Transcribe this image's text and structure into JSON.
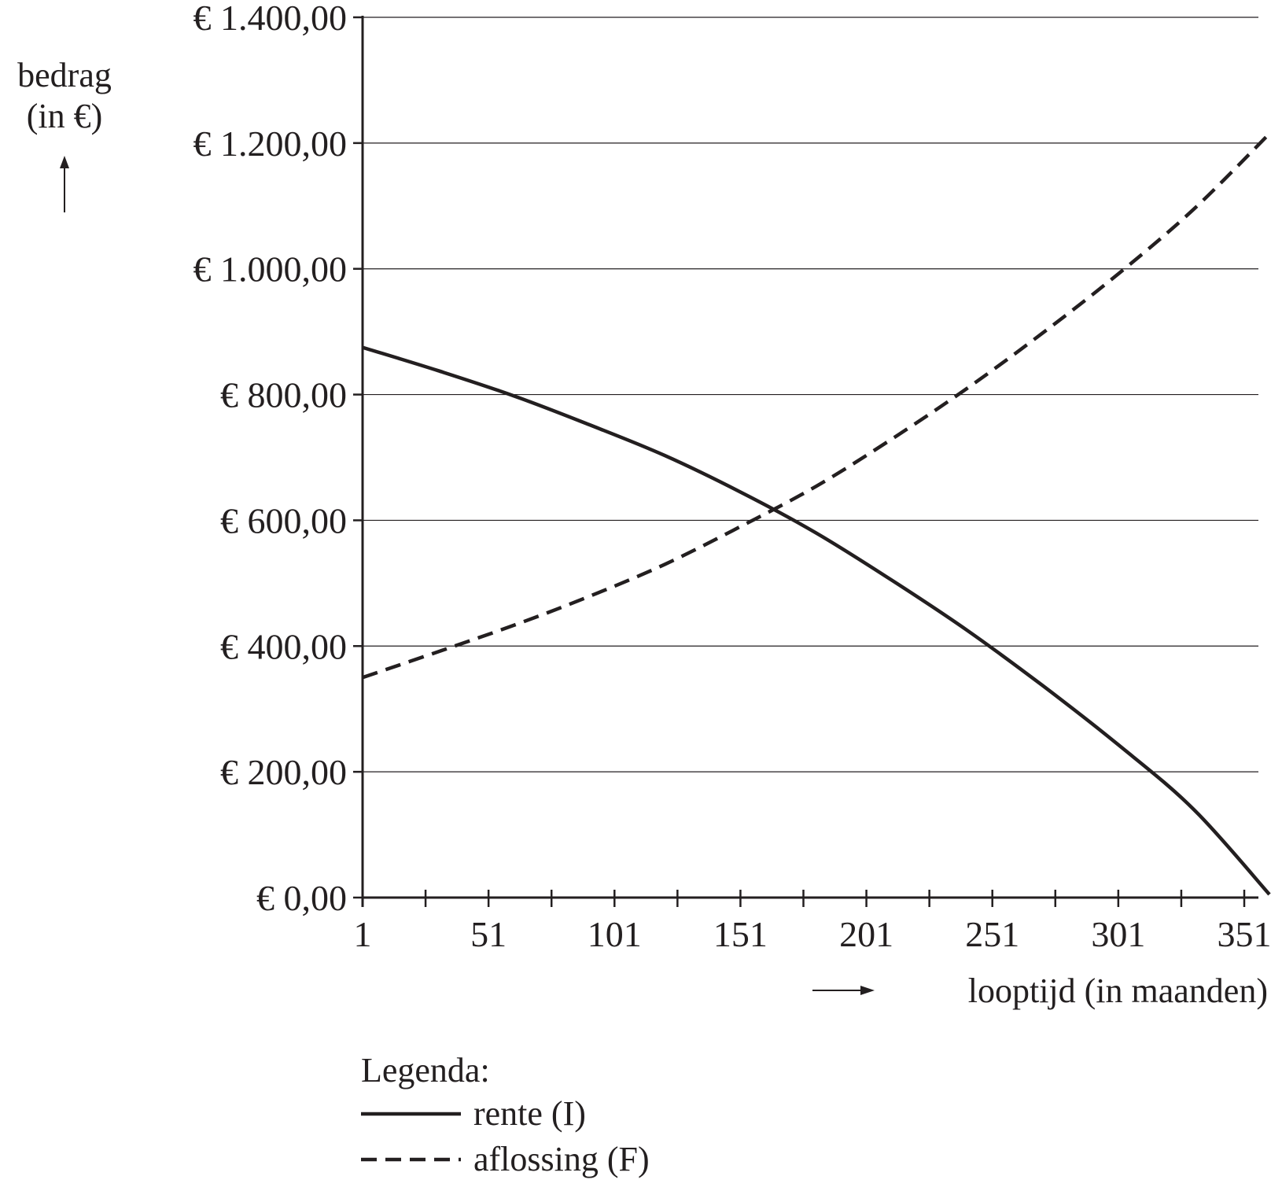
{
  "chart_data": {
    "type": "line",
    "ylabel_lines": [
      "bedrag",
      "(in €)"
    ],
    "xlabel": "looptijd (in maanden)",
    "ylim": [
      0,
      1400
    ],
    "y_ticks": [
      0,
      200,
      400,
      600,
      800,
      1000,
      1200,
      1400
    ],
    "y_tick_labels": [
      "€ 0,00",
      "€ 200,00",
      "€ 400,00",
      "€ 600,00",
      "€ 800,00",
      "€ 1.000,00",
      "€ 1.200,00",
      "€ 1.400,00"
    ],
    "xlim": [
      1,
      361
    ],
    "x_ticks": [
      1,
      51,
      101,
      151,
      201,
      251,
      301,
      351
    ],
    "x_tick_labels": [
      "1",
      "51",
      "101",
      "151",
      "201",
      "251",
      "301",
      "351"
    ],
    "x_minor_ticks": [
      26,
      76,
      126,
      176,
      226,
      276,
      326
    ],
    "grid": "horizontal",
    "legend_title": "Legenda:",
    "legend_position": "bottom-left",
    "series": [
      {
        "name": "rente (I)",
        "style": "solid",
        "x": [
          1,
          31,
          61,
          91,
          121,
          151,
          181,
          211,
          241,
          271,
          301,
          331,
          361
        ],
        "y": [
          875,
          838,
          798,
          752,
          703,
          645,
          580,
          505,
          425,
          337,
          243,
          140,
          5
        ]
      },
      {
        "name": "aflossing (F)",
        "style": "dashed",
        "x": [
          1,
          31,
          61,
          91,
          121,
          151,
          181,
          211,
          241,
          271,
          301,
          331,
          361
        ],
        "y": [
          350,
          391,
          433,
          479,
          530,
          590,
          654,
          729,
          810,
          898,
          992,
          1095,
          1215
        ]
      }
    ]
  }
}
